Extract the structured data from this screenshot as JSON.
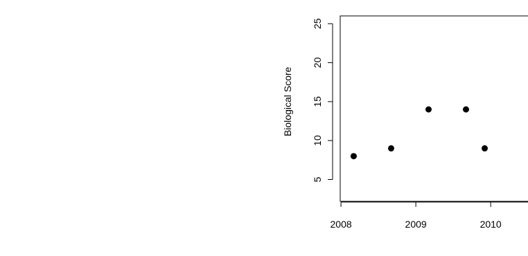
{
  "chart_data": {
    "type": "scatter",
    "title": "",
    "xlabel": "",
    "ylabel": "Biological Score",
    "x_ticks": [
      2008,
      2009,
      2010
    ],
    "y_ticks": [
      5,
      10,
      15,
      20,
      25
    ],
    "xlim": [
      2007.99,
      2010.48
    ],
    "ylim": [
      2.2,
      26.0
    ],
    "grid": false,
    "legend": "none",
    "point_color": "#000000",
    "series": [
      {
        "points": [
          {
            "x": 2008.17,
            "y": 8
          },
          {
            "x": 2008.67,
            "y": 9
          },
          {
            "x": 2009.17,
            "y": 14
          },
          {
            "x": 2009.67,
            "y": 14
          },
          {
            "x": 2009.92,
            "y": 9
          }
        ]
      }
    ]
  }
}
